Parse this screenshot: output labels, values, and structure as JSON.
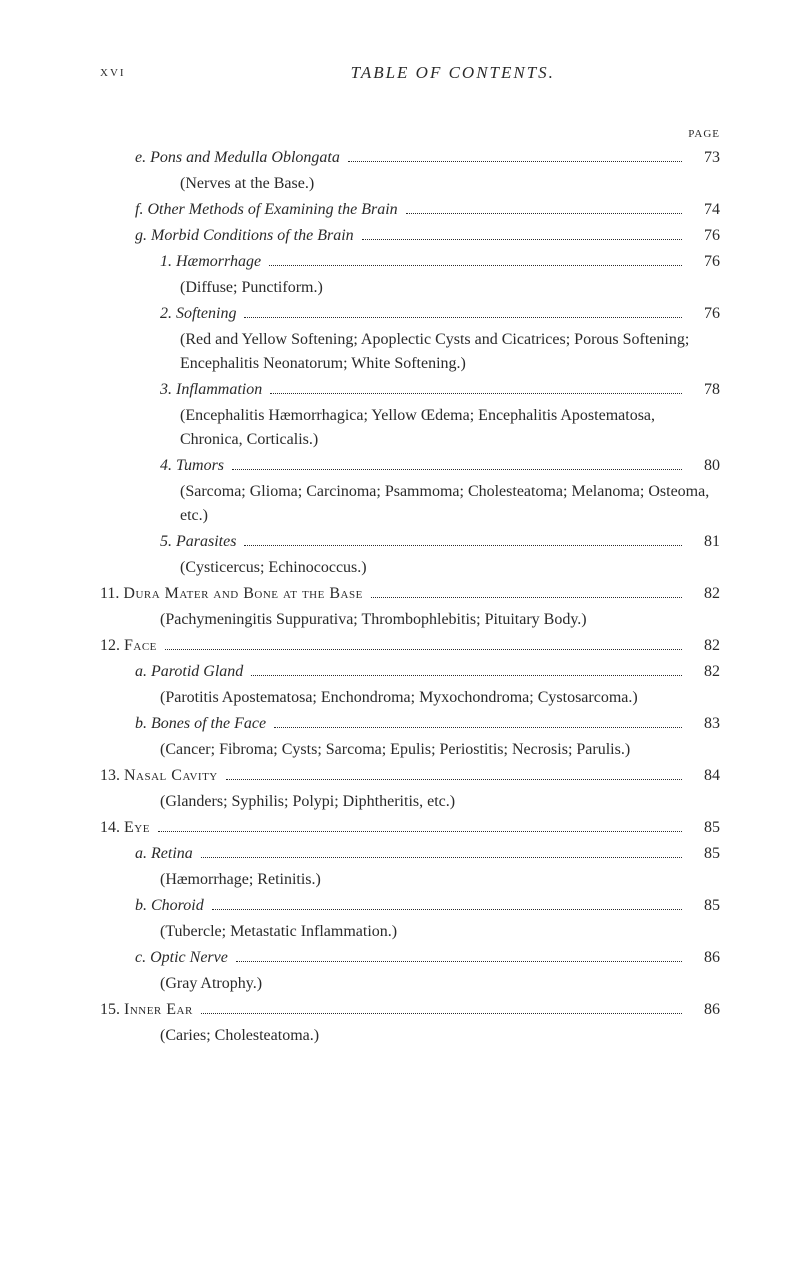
{
  "header": {
    "page_number": "xvi",
    "title": "TABLE OF CONTENTS.",
    "page_label": "PAGE"
  },
  "entries": [
    {
      "indent": 1,
      "prefix": "e.",
      "label": "Pons and Medulla Oblongata",
      "italic": true,
      "page": "73"
    },
    {
      "indent": 3,
      "note": "(Nerves at the Base.)"
    },
    {
      "indent": 1,
      "prefix": "f.",
      "label": "Other Methods of Examining the Brain",
      "italic": true,
      "page": "74"
    },
    {
      "indent": 1,
      "prefix": "g.",
      "label": "Morbid Conditions of the Brain",
      "italic": true,
      "page": "76"
    },
    {
      "indent": 2,
      "prefix": "1.",
      "label": "Hæmorrhage",
      "italic": true,
      "page": "76"
    },
    {
      "indent": 3,
      "note": "(Diffuse; Punctiform.)"
    },
    {
      "indent": 2,
      "prefix": "2.",
      "label": "Softening",
      "italic": true,
      "page": "76"
    },
    {
      "indent": 3,
      "note": "(Red and Yellow Softening; Apoplectic Cysts and Cicatrices; Porous Softening; Encephalitis Neonatorum; White Softening.)"
    },
    {
      "indent": 2,
      "prefix": "3.",
      "label": "Inflammation",
      "italic": true,
      "page": "78"
    },
    {
      "indent": 3,
      "note": "(Encephalitis Hæmorrhagica; Yellow Œdema; Encephalitis Apostematosa, Chronica, Corticalis.)"
    },
    {
      "indent": 2,
      "prefix": "4.",
      "label": "Tumors",
      "italic": true,
      "page": "80"
    },
    {
      "indent": 3,
      "note": "(Sarcoma; Glioma; Carcinoma; Psammoma; Cholesteatoma; Melanoma; Osteoma, etc.)"
    },
    {
      "indent": 2,
      "prefix": "5.",
      "label": "Parasites",
      "italic": true,
      "page": "81"
    },
    {
      "indent": 3,
      "note": "(Cysticercus; Echinococcus.)"
    },
    {
      "indent": 0,
      "prefix": "11.",
      "label": "Dura Mater and Bone at the Base",
      "smallcaps": true,
      "page": "82"
    },
    {
      "indent": 2,
      "note": "(Pachymeningitis Suppurativa; Thrombophlebitis; Pituitary Body.)"
    },
    {
      "indent": 0,
      "prefix": "12.",
      "label": "Face",
      "smallcaps": true,
      "page": "82"
    },
    {
      "indent": 1,
      "prefix": "a.",
      "label": "Parotid Gland",
      "italic": true,
      "page": "82"
    },
    {
      "indent": 2,
      "note": "(Parotitis Apostematosa; Enchondroma; Myxochondroma; Cystosarcoma.)"
    },
    {
      "indent": 1,
      "prefix": "b.",
      "label": "Bones of the Face",
      "italic": true,
      "page": "83"
    },
    {
      "indent": 2,
      "note": "(Cancer; Fibroma; Cysts; Sarcoma; Epulis; Periostitis; Necrosis; Parulis.)"
    },
    {
      "indent": 0,
      "prefix": "13.",
      "label": "Nasal Cavity",
      "smallcaps": true,
      "page": "84"
    },
    {
      "indent": 2,
      "note": "(Glanders; Syphilis; Polypi; Diphtheritis, etc.)"
    },
    {
      "indent": 0,
      "prefix": "14.",
      "label": "Eye",
      "smallcaps": true,
      "page": "85"
    },
    {
      "indent": 1,
      "prefix": "a.",
      "label": "Retina",
      "italic": true,
      "page": "85"
    },
    {
      "indent": 2,
      "note": "(Hæmorrhage; Retinitis.)"
    },
    {
      "indent": 1,
      "prefix": "b.",
      "label": "Choroid",
      "italic": true,
      "page": "85"
    },
    {
      "indent": 2,
      "note": "(Tubercle; Metastatic Inflammation.)"
    },
    {
      "indent": 1,
      "prefix": "c.",
      "label": "Optic Nerve",
      "italic": true,
      "page": "86"
    },
    {
      "indent": 2,
      "note": "(Gray Atrophy.)"
    },
    {
      "indent": 0,
      "prefix": "15.",
      "label": "Inner Ear",
      "smallcaps": true,
      "page": "86"
    },
    {
      "indent": 2,
      "note": "(Caries; Cholesteatoma.)"
    }
  ],
  "style": {
    "body_bg": "#ffffff",
    "text_color": "#2a2a2a",
    "font_family": "Georgia, 'Times New Roman', serif",
    "font_size": 16
  }
}
